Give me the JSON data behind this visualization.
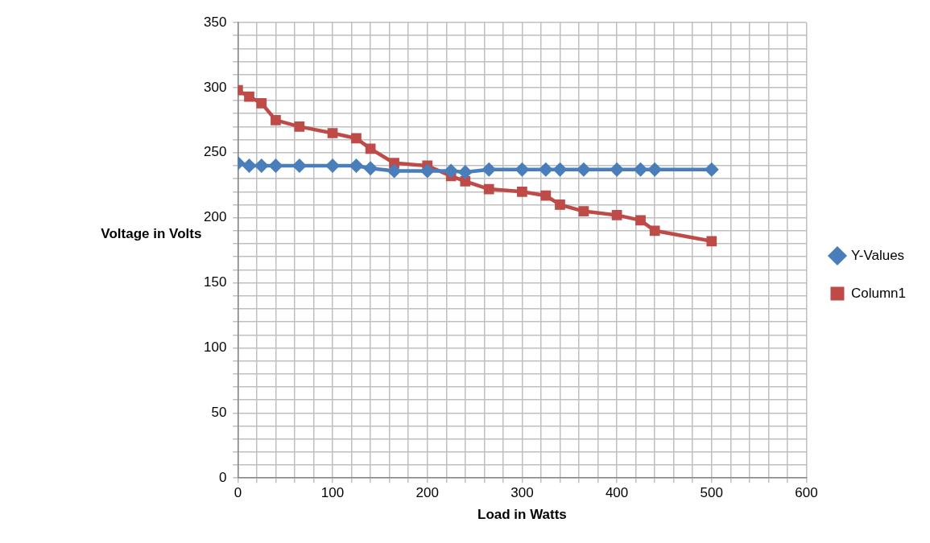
{
  "chart_data": {
    "type": "line",
    "xlabel": "Load in Watts",
    "ylabel": "Voltage in Volts",
    "x": [
      0,
      12,
      25,
      40,
      65,
      100,
      125,
      140,
      165,
      200,
      225,
      240,
      265,
      300,
      325,
      340,
      365,
      400,
      425,
      440,
      500
    ],
    "series": [
      {
        "name": "Y-Values",
        "color": "#4a7ebb",
        "marker": "diamond",
        "values": [
          242,
          240,
          240,
          240,
          240,
          240,
          240,
          238,
          236,
          236,
          236,
          235,
          237,
          237,
          237,
          237,
          237,
          237,
          237,
          237,
          237
        ]
      },
      {
        "name": "Column1",
        "color": "#be4b48",
        "marker": "square",
        "values": [
          298,
          293,
          288,
          275,
          270,
          265,
          261,
          253,
          242,
          240,
          232,
          228,
          222,
          220,
          217,
          210,
          205,
          202,
          198,
          190,
          182
        ]
      }
    ],
    "xlim": [
      0,
      600
    ],
    "xticks": [
      0,
      {
        "value": 20,
        "label": null
      },
      {
        "value": 40,
        "label": null
      },
      {
        "value": 60,
        "label": null
      },
      {
        "value": 80,
        "label": null
      },
      100,
      {
        "value": 120,
        "label": null
      },
      {
        "value": 140,
        "label": null
      },
      {
        "value": 160,
        "label": null
      },
      {
        "value": 180,
        "label": null
      },
      200,
      {
        "value": 220,
        "label": null
      },
      {
        "value": 240,
        "label": null
      },
      {
        "value": 260,
        "label": null
      },
      {
        "value": 280,
        "label": null
      },
      300,
      {
        "value": 320,
        "label": null
      },
      {
        "value": 340,
        "label": null
      },
      {
        "value": 360,
        "label": null
      },
      {
        "value": 380,
        "label": null
      },
      400,
      {
        "value": 420,
        "label": null
      },
      {
        "value": 440,
        "label": null
      },
      {
        "value": 460,
        "label": null
      },
      {
        "value": 480,
        "label": null
      },
      500,
      {
        "value": 520,
        "label": null
      },
      {
        "value": 540,
        "label": null
      },
      {
        "value": 560,
        "label": null
      },
      {
        "value": 580,
        "label": null
      },
      600
    ],
    "ylim": [
      0,
      350
    ],
    "yticks": [
      0,
      {
        "value": 10,
        "label": null
      },
      {
        "value": 20,
        "label": null
      },
      {
        "value": 30,
        "label": null
      },
      {
        "value": 40,
        "label": null
      },
      50,
      {
        "value": 60,
        "label": null
      },
      {
        "value": 70,
        "label": null
      },
      {
        "value": 80,
        "label": null
      },
      {
        "value": 90,
        "label": null
      },
      100,
      {
        "value": 110,
        "label": null
      },
      {
        "value": 120,
        "label": null
      },
      {
        "value": 130,
        "label": null
      },
      {
        "value": 140,
        "label": null
      },
      150,
      {
        "value": 160,
        "label": null
      },
      {
        "value": 170,
        "label": null
      },
      {
        "value": 180,
        "label": null
      },
      {
        "value": 190,
        "label": null
      },
      200,
      {
        "value": 210,
        "label": null
      },
      {
        "value": 220,
        "label": null
      },
      {
        "value": 230,
        "label": null
      },
      {
        "value": 240,
        "label": null
      },
      250,
      {
        "value": 260,
        "label": null
      },
      {
        "value": 270,
        "label": null
      },
      {
        "value": 280,
        "label": null
      },
      {
        "value": 290,
        "label": null
      },
      300,
      {
        "value": 310,
        "label": null
      },
      {
        "value": 320,
        "label": null
      },
      {
        "value": 330,
        "label": null
      },
      {
        "value": 340,
        "label": null
      },
      350
    ],
    "grid": true,
    "legend": "right",
    "line_style": "solid"
  }
}
